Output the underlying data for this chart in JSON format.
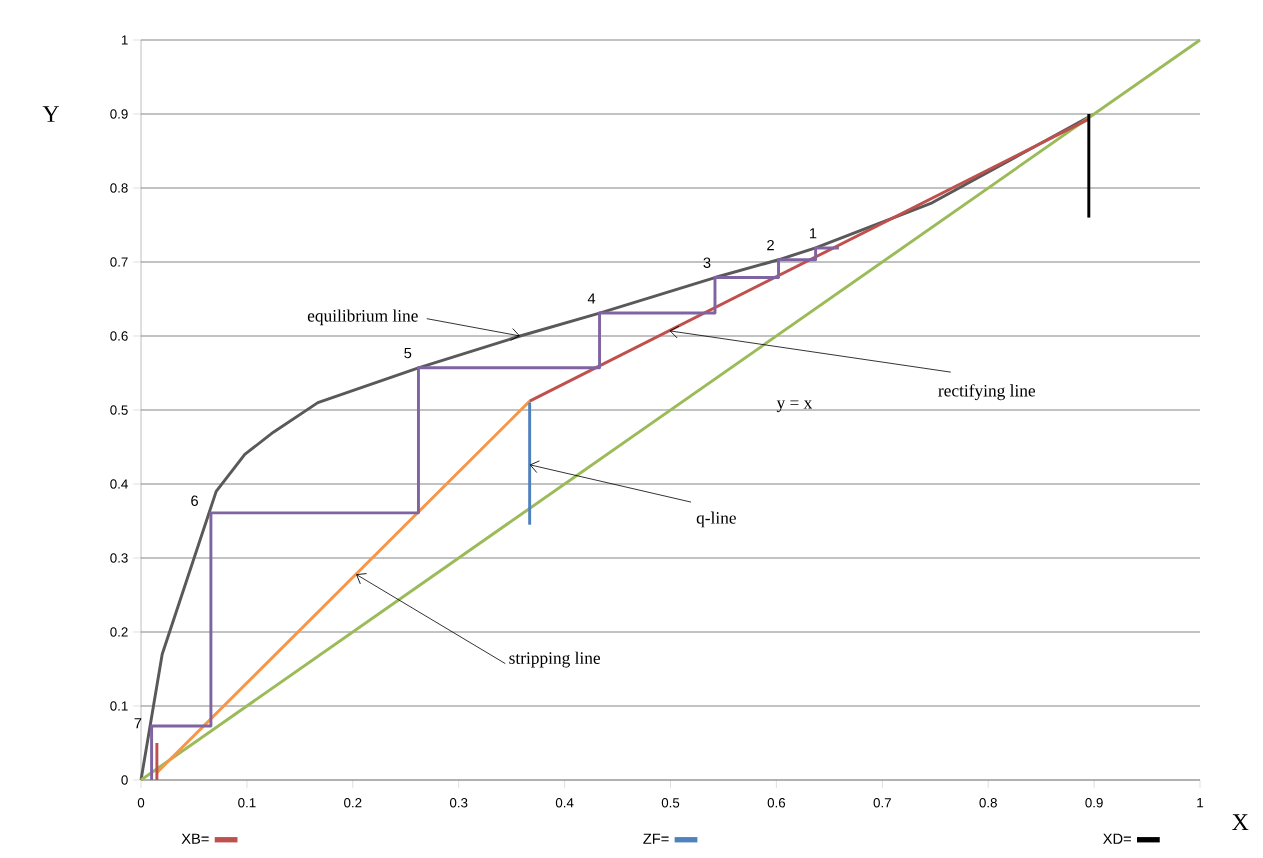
{
  "chart_data": {
    "type": "line",
    "xlabel": "X",
    "ylabel": "Y",
    "xlim": [
      0,
      1
    ],
    "ylim": [
      0,
      1
    ],
    "xticks": [
      0,
      0.1,
      0.2,
      0.3,
      0.4,
      0.5,
      0.6,
      0.7,
      0.8,
      0.9,
      1
    ],
    "yticks": [
      0,
      0.1,
      0.2,
      0.3,
      0.4,
      0.5,
      0.6,
      0.7,
      0.8,
      0.9,
      1
    ],
    "grid": "y",
    "legend": "bottom",
    "marker": "none",
    "line_style": "solid",
    "series": [
      {
        "color": "#595959",
        "x": [
          0,
          0.02,
          0.071,
          0.098,
          0.125,
          0.167,
          0.262,
          0.358,
          0.433,
          0.542,
          0.602,
          0.637,
          0.747,
          0.9
        ],
        "values": [
          0,
          0.17,
          0.39,
          0.44,
          0.47,
          0.51,
          0.557,
          0.6,
          0.631,
          0.679,
          0.703,
          0.719,
          0.78,
          0.9
        ]
      },
      {
        "color": "#9bbb59",
        "x": [
          0,
          1
        ],
        "values": [
          0,
          1
        ]
      },
      {
        "color": "#f79646",
        "x": [
          0.015,
          0.367
        ],
        "values": [
          0.01,
          0.512
        ]
      },
      {
        "color": "#c0504d",
        "x": [
          0.367,
          0.895
        ],
        "values": [
          0.512,
          0.893
        ]
      },
      {
        "color": "#8064a2",
        "x": [
          0.659,
          0.637,
          0.637,
          0.602,
          0.602,
          0.542,
          0.542,
          0.433,
          0.433,
          0.262,
          0.262,
          0.066,
          0.066,
          0.01,
          0.01
        ],
        "values": [
          0.719,
          0.719,
          0.703,
          0.703,
          0.679,
          0.679,
          0.631,
          0.631,
          0.557,
          0.557,
          0.361,
          0.361,
          0.073,
          0.073,
          0
        ]
      },
      {
        "name": "XB=",
        "color": "#c0504d",
        "x": [
          0.015,
          0.015
        ],
        "values": [
          0,
          0.05
        ]
      },
      {
        "name": "ZF=",
        "color": "#4f81bd",
        "x": [
          0.367,
          0.367
        ],
        "values": [
          0.345,
          0.51
        ]
      },
      {
        "name": "XD=",
        "color": "#000000",
        "x": [
          0.895,
          0.895
        ],
        "values": [
          0.76,
          0.9
        ]
      }
    ],
    "annotations": [
      {
        "text": "equilibrium  line",
        "x": 0.358,
        "y": 0.6
      },
      {
        "text": "rectifying  line",
        "x": 0.499,
        "y": 0.607
      },
      {
        "text": "stripping  line",
        "x": 0.203,
        "y": 0.278
      },
      {
        "text": "q-line",
        "x": 0.367,
        "y": 0.426
      },
      "y = x",
      {
        "text": "1",
        "x": 0.637,
        "y": 0.719
      },
      {
        "text": "2",
        "x": 0.602,
        "y": 0.703
      },
      {
        "text": "3",
        "x": 0.542,
        "y": 0.679
      },
      {
        "text": "4",
        "x": 0.433,
        "y": 0.631
      },
      {
        "text": "5",
        "x": 0.262,
        "y": 0.557
      },
      {
        "text": "6",
        "x": 0.066,
        "y": 0.361
      },
      {
        "text": "7",
        "x": 0.01,
        "y": 0.073
      }
    ]
  }
}
